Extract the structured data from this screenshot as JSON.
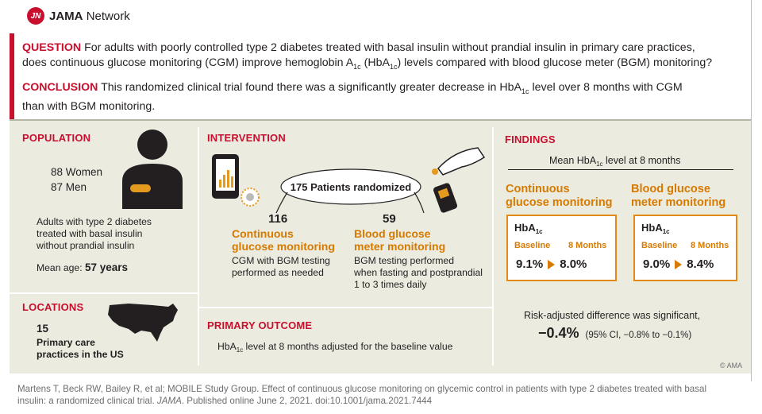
{
  "header": {
    "brand_initials": "JN",
    "brand_name": "JAMA",
    "brand_suffix": "Network"
  },
  "question": {
    "label": "QUESTION",
    "text_a": "For adults with poorly controlled type 2 diabetes treated with basal insulin without prandial insulin in primary care practices,",
    "text_b1": "does continuous glucose monitoring (CGM) improve hemoglobin A",
    "text_b_sub1": "1c",
    "text_b2": " (HbA",
    "text_b_sub2": "1c",
    "text_b3": ") levels compared with blood glucose meter (BGM) monitoring?"
  },
  "conclusion": {
    "label": "CONCLUSION",
    "text_a1": "This randomized clinical trial found there was a significantly greater decrease in HbA",
    "text_a_sub": "1c",
    "text_a2": " level over 8 months with CGM",
    "text_b": "than with BGM monitoring."
  },
  "population": {
    "title": "POPULATION",
    "women": "88 Women",
    "men": "87 Men",
    "desc1": "Adults with type 2 diabetes",
    "desc2": "treated with basal insulin",
    "desc3": "without prandial insulin",
    "mean_age_label": "Mean age:",
    "mean_age_value": "57 years"
  },
  "locations": {
    "title": "LOCATIONS",
    "count": "15",
    "line1": "Primary care",
    "line2": "practices in the US"
  },
  "intervention": {
    "title": "INTERVENTION",
    "randomized": "175 Patients randomized",
    "cgm_count": "116",
    "cgm_name1": "Continuous",
    "cgm_name2": "glucose monitoring",
    "cgm_desc1": "CGM with BGM testing",
    "cgm_desc2": "performed as needed",
    "bgm_count": "59",
    "bgm_name1": "Blood glucose",
    "bgm_name2": "meter monitoring",
    "bgm_desc1": "BGM testing performed",
    "bgm_desc2": "when fasting and postprandial",
    "bgm_desc3": "1 to 3 times daily"
  },
  "primary_outcome": {
    "title": "PRIMARY OUTCOME",
    "text1": "HbA",
    "text_sub": "1c",
    "text2": " level at 8 months adjusted for the baseline value"
  },
  "findings": {
    "title": "FINDINGS",
    "subtitle1": "Mean HbA",
    "subtitle_sub": "1c",
    "subtitle2": " level at 8 months",
    "cgm": {
      "name1": "Continuous",
      "name2": "glucose monitoring",
      "metric": "HbA",
      "metric_sub": "1c",
      "baseline_label": "Baseline",
      "months_label": "8 Months",
      "baseline": "9.1%",
      "months": "8.0%"
    },
    "bgm": {
      "name1": "Blood glucose",
      "name2": "meter monitoring",
      "metric": "HbA",
      "metric_sub": "1c",
      "baseline_label": "Baseline",
      "months_label": "8 Months",
      "baseline": "9.0%",
      "months": "8.4%"
    },
    "risk_text": "Risk-adjusted difference was significant,",
    "difference": "−0.4%",
    "ci": "(95% CI, −0.8% to −0.1%)",
    "copyright": "© AMA"
  },
  "footer": {
    "line1": "Martens T, Beck RW, Bailey R, et al; MOBILE Study Group. Effect of continuous glucose monitoring on glycemic control in patients with type 2 diabetes treated with basal",
    "line2a": "insulin: a randomized clinical trial. ",
    "line2_journal": "JAMA",
    "line2b": ". Published online June 2, 2021. doi:10.1001/jama.2021.7444"
  }
}
